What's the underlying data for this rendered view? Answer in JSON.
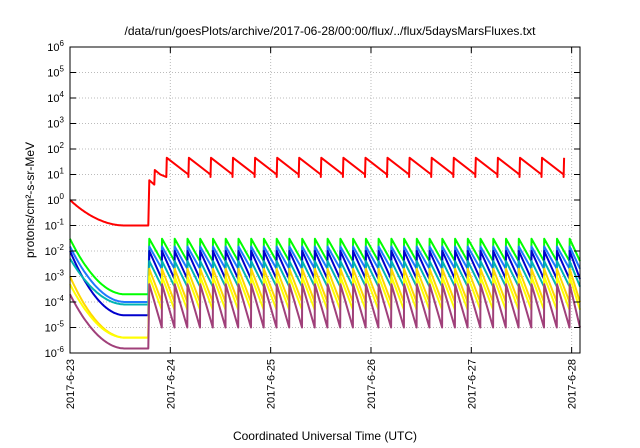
{
  "chart_data": {
    "type": "line",
    "title": "/data/run/goesPlots/archive/2017-06-28/00:00/flux/../flux/5daysMarsFluxes.txt",
    "xlabel": "Coordinated Universal Time (UTC)",
    "ylabel": "protons/cm²-s-sr-MeV",
    "yscale": "log",
    "ylim": [
      1e-06,
      1000000.0
    ],
    "ytick_exponents": [
      -6,
      -5,
      -4,
      -3,
      -2,
      -1,
      0,
      1,
      2,
      3,
      4,
      5,
      6
    ],
    "xlim": [
      "2017-06-23",
      "2017-06-28 02:00"
    ],
    "xtick_labels": [
      "2017-6-23",
      "2017-6-24",
      "2017-6-25",
      "2017-6-26",
      "2017-6-27",
      "2017-6-28"
    ],
    "grid": true,
    "legend": "none",
    "series": [
      {
        "color": "#ff0000",
        "t0": 1.0,
        "t1": 0.1,
        "peak": 45,
        "trough": 8,
        "decay": 4.5
      },
      {
        "color": "#00ff00",
        "t0": 0.03,
        "t1": 0.0002,
        "peak": 0.03,
        "trough": 0.004,
        "decay": 10
      },
      {
        "color": "#1f78ff",
        "t0": 0.015,
        "t1": 0.0001,
        "peak": 0.015,
        "trough": 0.002,
        "decay": 10
      },
      {
        "color": "#0000cd",
        "t0": 0.01,
        "t1": 3e-05,
        "peak": 0.01,
        "trough": 0.0008,
        "decay": 10
      },
      {
        "color": "#00b3b3",
        "t0": 0.005,
        "t1": 8e-05,
        "peak": 0.004,
        "trough": 0.0004,
        "decay": 10
      },
      {
        "color": "#ffd700",
        "t0": 0.001,
        "t1": 4e-06,
        "peak": 0.002,
        "trough": 0.0001,
        "decay": 10
      },
      {
        "color": "#ffff00",
        "t0": 0.0005,
        "t1": 4e-06,
        "peak": 0.001,
        "trough": 5e-05,
        "decay": 10
      },
      {
        "color": "#a0407a",
        "t0": 0.0002,
        "t1": 1.5e-06,
        "peak": 0.0005,
        "trough": 1e-05,
        "decay": 10
      }
    ]
  }
}
